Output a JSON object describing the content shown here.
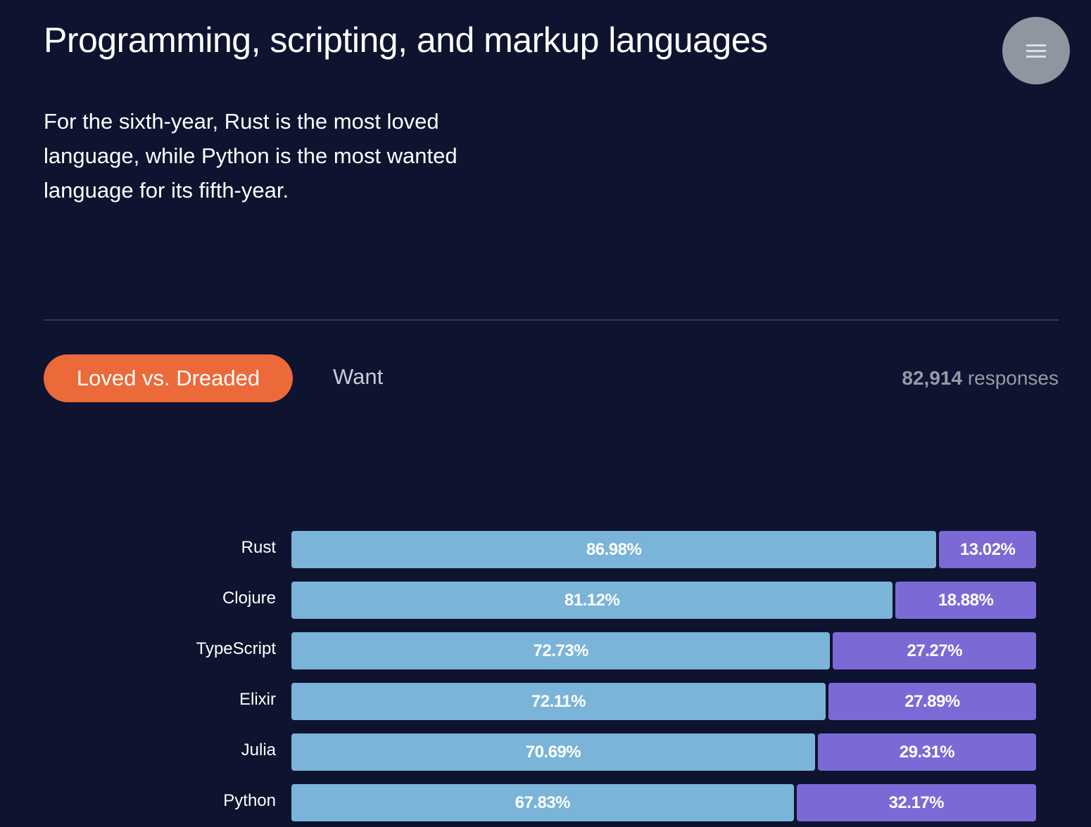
{
  "header": {
    "title": "Programming, scripting, and markup languages",
    "menu_icon": "hamburger-menu-icon"
  },
  "description": "For the sixth-year, Rust is the most loved language, while Python is the most wanted language for its fifth-year.",
  "tabs": [
    {
      "label": "Loved vs. Dreaded",
      "active": true
    },
    {
      "label": "Want",
      "active": false
    }
  ],
  "responses": {
    "count": "82,914",
    "label": "responses"
  },
  "colors": {
    "background": "#0e132f",
    "loved": "#7ab4d8",
    "dreaded": "#7b6ad5",
    "accent": "#ec6a3a"
  },
  "chart_data": {
    "type": "bar",
    "stacked": true,
    "orientation": "horizontal",
    "categories": [
      "Rust",
      "Clojure",
      "TypeScript",
      "Elixir",
      "Julia",
      "Python"
    ],
    "series": [
      {
        "values": [
          86.98,
          81.12,
          72.73,
          72.11,
          70.69,
          67.83
        ],
        "labels": [
          "86.98%",
          "81.12%",
          "72.73%",
          "72.11%",
          "70.69%",
          "67.83%"
        ]
      },
      {
        "values": [
          13.02,
          18.88,
          27.27,
          27.89,
          29.31,
          32.17
        ],
        "labels": [
          "13.02%",
          "18.88%",
          "27.27%",
          "27.89%",
          "29.31%",
          "32.17%"
        ]
      }
    ],
    "xlim": [
      0,
      100
    ]
  }
}
